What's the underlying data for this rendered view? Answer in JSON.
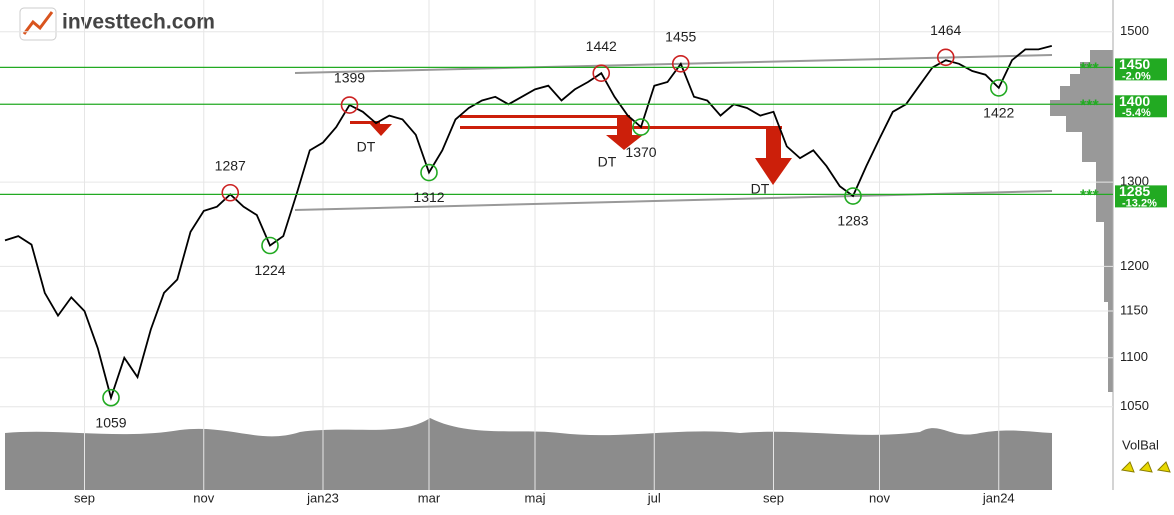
{
  "logo": "investtech.com",
  "chart_data": {
    "type": "line",
    "log_scale": true,
    "grid": true,
    "color": "#000000",
    "ylim": [
      970,
      1546
    ],
    "yticks": [
      1050,
      1100,
      1150,
      1200,
      1300,
      1500
    ],
    "categories": [
      null,
      null,
      null,
      null,
      null,
      null,
      "sep",
      null,
      null,
      null,
      null,
      null,
      null,
      null,
      null,
      "nov",
      null,
      null,
      null,
      null,
      null,
      null,
      null,
      null,
      "jan23",
      null,
      null,
      null,
      null,
      null,
      null,
      null,
      "mar",
      null,
      null,
      null,
      null,
      null,
      null,
      null,
      "maj",
      null,
      null,
      null,
      null,
      null,
      null,
      null,
      null,
      "jul",
      null,
      null,
      null,
      null,
      null,
      null,
      null,
      null,
      "sep",
      null,
      null,
      null,
      null,
      null,
      null,
      null,
      "nov",
      null,
      null,
      null,
      null,
      null,
      null,
      null,
      null,
      "jan24",
      null,
      null,
      null,
      null
    ],
    "values": [
      1230,
      1235,
      1225,
      1170,
      1145,
      1165,
      1150,
      1110,
      1059,
      1100,
      1080,
      1130,
      1170,
      1185,
      1240,
      1265,
      1270,
      1285,
      1270,
      1260,
      1224,
      1235,
      1285,
      1340,
      1350,
      1370,
      1399,
      1390,
      1375,
      1385,
      1380,
      1360,
      1312,
      1340,
      1380,
      1395,
      1405,
      1410,
      1400,
      1410,
      1420,
      1425,
      1405,
      1420,
      1430,
      1442,
      1410,
      1385,
      1370,
      1425,
      1430,
      1455,
      1410,
      1405,
      1385,
      1400,
      1395,
      1385,
      1390,
      1345,
      1330,
      1340,
      1320,
      1295,
      1283,
      1320,
      1355,
      1390,
      1400,
      1425,
      1450,
      1460,
      1455,
      1445,
      1440,
      1422,
      1460,
      1475,
      1475,
      1480
    ],
    "annotations": [
      {
        "value": 1059,
        "color": "#22aa22"
      },
      {
        "value": 1287,
        "color": "#cc2222"
      },
      {
        "value": 1224,
        "color": "#22aa22"
      },
      {
        "value": 1399,
        "color": "#cc2222"
      },
      {
        "value": 1312,
        "color": "#22aa22"
      },
      {
        "value": 1442,
        "color": "#cc2222"
      },
      {
        "value": 1370,
        "color": "#22aa22"
      },
      {
        "value": 1455,
        "color": "#cc2222"
      },
      {
        "value": 1283,
        "color": "#22aa22"
      },
      {
        "value": 1464,
        "color": "#cc2222"
      },
      {
        "value": 1422,
        "color": "#22aa22"
      }
    ],
    "signals": [
      "DT",
      "DT",
      "DT"
    ],
    "levels": [
      {
        "value": 1450,
        "change": "-2.0%",
        "color": "#22aa22"
      },
      {
        "value": 1400,
        "change": "-5.4%",
        "color": "#22aa22"
      },
      {
        "value": 1285,
        "change": "-13.2%",
        "color": "#22aa22"
      }
    ],
    "volume_label": "VolBal"
  }
}
